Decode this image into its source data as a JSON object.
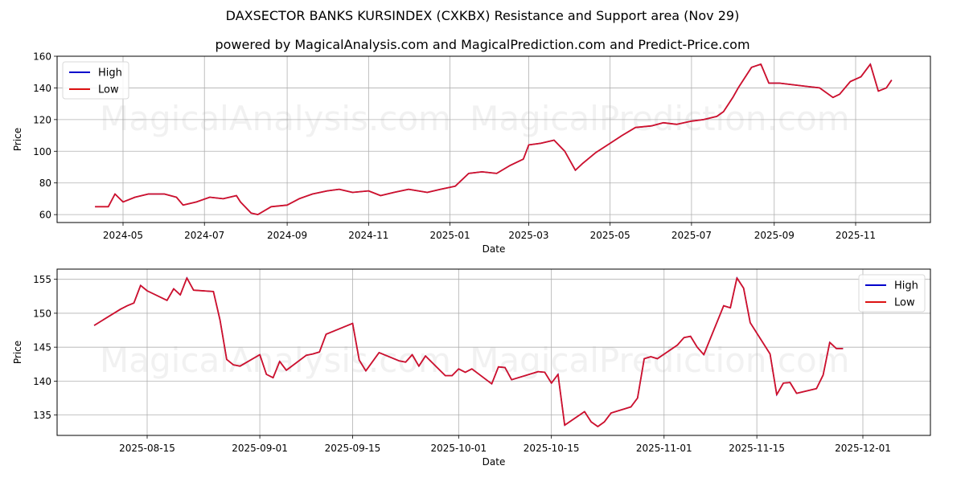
{
  "header": {
    "title": "DAXSECTOR BANKS KURSINDEX (CXKBX) Resistance and Support area (Nov 29)",
    "subtitle": "powered by MagicalAnalysis.com and MagicalPrediction.com and Predict-Price.com"
  },
  "watermarks": [
    "MagicalAnalysis.com",
    "MagicalPrediction.com"
  ],
  "colors": {
    "high": "#0000cc",
    "low": "#dd1111",
    "line": "#d0112b",
    "grid": "#b0b0b0"
  },
  "chart_data": [
    {
      "type": "line",
      "title": "Full history",
      "xlabel": "Date",
      "ylabel": "Price",
      "ylim": [
        55,
        160
      ],
      "yticks": [
        60,
        80,
        100,
        120,
        140,
        160
      ],
      "xticks": [
        "2024-05",
        "2024-07",
        "2024-09",
        "2024-11",
        "2025-01",
        "2025-03",
        "2025-05",
        "2025-07",
        "2025-09",
        "2025-11"
      ],
      "legend": {
        "position": "upper left",
        "entries": [
          "High",
          "Low"
        ]
      },
      "grid": true,
      "x": [
        "2024-04-10",
        "2024-04-20",
        "2024-04-25",
        "2024-05-01",
        "2024-05-10",
        "2024-05-20",
        "2024-06-01",
        "2024-06-10",
        "2024-06-15",
        "2024-06-25",
        "2024-07-05",
        "2024-07-15",
        "2024-07-25",
        "2024-07-28",
        "2024-08-05",
        "2024-08-10",
        "2024-08-20",
        "2024-09-01",
        "2024-09-10",
        "2024-09-20",
        "2024-10-01",
        "2024-10-10",
        "2024-10-20",
        "2024-11-01",
        "2024-11-10",
        "2024-11-20",
        "2024-12-01",
        "2024-12-15",
        "2024-12-25",
        "2025-01-05",
        "2025-01-15",
        "2025-01-25",
        "2025-02-05",
        "2025-02-15",
        "2025-02-25",
        "2025-03-01",
        "2025-03-10",
        "2025-03-20",
        "2025-03-28",
        "2025-04-05",
        "2025-04-10",
        "2025-04-20",
        "2025-05-01",
        "2025-05-10",
        "2025-05-20",
        "2025-06-01",
        "2025-06-10",
        "2025-06-20",
        "2025-07-01",
        "2025-07-10",
        "2025-07-20",
        "2025-07-25",
        "2025-08-01",
        "2025-08-05",
        "2025-08-15",
        "2025-08-22",
        "2025-08-28",
        "2025-09-05",
        "2025-09-15",
        "2025-09-25",
        "2025-10-05",
        "2025-10-15",
        "2025-10-20",
        "2025-10-28",
        "2025-11-05",
        "2025-11-12",
        "2025-11-18",
        "2025-11-24",
        "2025-11-28"
      ],
      "series": [
        {
          "name": "High",
          "values": [
            65,
            65,
            73,
            68,
            71,
            73,
            73,
            71,
            66,
            68,
            71,
            70,
            72,
            68,
            61,
            60,
            65,
            66,
            70,
            73,
            75,
            76,
            74,
            75,
            72,
            74,
            76,
            74,
            76,
            78,
            86,
            87,
            86,
            91,
            95,
            104,
            105,
            107,
            100,
            88,
            92,
            99,
            105,
            110,
            115,
            116,
            118,
            117,
            119,
            120,
            122,
            125,
            134,
            140,
            153,
            155,
            143,
            143,
            142,
            141,
            140,
            134,
            136,
            144,
            147,
            155,
            138,
            140,
            145
          ]
        },
        {
          "name": "Low",
          "values": [
            65,
            65,
            73,
            68,
            71,
            73,
            73,
            71,
            66,
            68,
            71,
            70,
            72,
            68,
            61,
            60,
            65,
            66,
            70,
            73,
            75,
            76,
            74,
            75,
            72,
            74,
            76,
            74,
            76,
            78,
            86,
            87,
            86,
            91,
            95,
            104,
            105,
            107,
            100,
            88,
            92,
            99,
            105,
            110,
            115,
            116,
            118,
            117,
            119,
            120,
            122,
            125,
            134,
            140,
            153,
            155,
            143,
            143,
            142,
            141,
            140,
            134,
            136,
            144,
            147,
            155,
            138,
            140,
            145
          ]
        }
      ]
    },
    {
      "type": "line",
      "title": "Recent zoom",
      "xlabel": "Date",
      "ylabel": "Price",
      "ylim": [
        132,
        156.5
      ],
      "yticks": [
        135,
        140,
        145,
        150,
        155
      ],
      "xticks": [
        "2025-08-15",
        "2025-09-01",
        "2025-09-15",
        "2025-10-01",
        "2025-10-15",
        "2025-11-01",
        "2025-11-15",
        "2025-12-01"
      ],
      "legend": {
        "position": "upper right",
        "entries": [
          "High",
          "Low"
        ]
      },
      "grid": true,
      "x": [
        "2025-08-07",
        "2025-08-11",
        "2025-08-12",
        "2025-08-13",
        "2025-08-14",
        "2025-08-15",
        "2025-08-18",
        "2025-08-19",
        "2025-08-20",
        "2025-08-21",
        "2025-08-22",
        "2025-08-25",
        "2025-08-26",
        "2025-08-27",
        "2025-08-28",
        "2025-08-29",
        "2025-09-01",
        "2025-09-02",
        "2025-09-03",
        "2025-09-04",
        "2025-09-05",
        "2025-09-08",
        "2025-09-09",
        "2025-09-10",
        "2025-09-11",
        "2025-09-15",
        "2025-09-16",
        "2025-09-17",
        "2025-09-19",
        "2025-09-22",
        "2025-09-23",
        "2025-09-24",
        "2025-09-25",
        "2025-09-26",
        "2025-09-29",
        "2025-09-30",
        "2025-10-01",
        "2025-10-02",
        "2025-10-03",
        "2025-10-06",
        "2025-10-07",
        "2025-10-08",
        "2025-10-09",
        "2025-10-13",
        "2025-10-14",
        "2025-10-15",
        "2025-10-16",
        "2025-10-17",
        "2025-10-20",
        "2025-10-21",
        "2025-10-22",
        "2025-10-23",
        "2025-10-24",
        "2025-10-27",
        "2025-10-28",
        "2025-10-29",
        "2025-10-30",
        "2025-10-31",
        "2025-11-03",
        "2025-11-04",
        "2025-11-05",
        "2025-11-06",
        "2025-11-07",
        "2025-11-10",
        "2025-11-11",
        "2025-11-12",
        "2025-11-13",
        "2025-11-14",
        "2025-11-17",
        "2025-11-18",
        "2025-11-19",
        "2025-11-20",
        "2025-11-21",
        "2025-11-24",
        "2025-11-25",
        "2025-11-26",
        "2025-11-27",
        "2025-11-28"
      ],
      "series": [
        {
          "name": "High",
          "values": [
            148.2,
            150.6,
            151.1,
            151.5,
            154.1,
            153.3,
            151.9,
            153.6,
            152.7,
            155.2,
            153.4,
            153.2,
            149.0,
            143.2,
            142.4,
            142.2,
            143.9,
            141.0,
            140.5,
            142.9,
            141.6,
            143.8,
            144.0,
            144.3,
            146.9,
            148.5,
            143.1,
            141.5,
            144.2,
            143.0,
            142.8,
            143.9,
            142.2,
            143.7,
            140.8,
            140.8,
            141.8,
            141.3,
            141.8,
            139.6,
            142.1,
            142.0,
            140.2,
            141.4,
            141.3,
            139.7,
            141.0,
            133.5,
            135.5,
            134.0,
            133.3,
            134.0,
            135.3,
            136.2,
            137.5,
            143.3,
            143.6,
            143.3,
            145.3,
            146.4,
            146.6,
            145.0,
            143.9,
            151.1,
            150.8,
            155.2,
            153.7,
            148.6,
            144.0,
            138.0,
            139.7,
            139.8,
            138.2,
            138.9,
            140.9,
            145.7,
            144.8,
            144.8
          ]
        },
        {
          "name": "Low",
          "values": [
            148.2,
            150.6,
            151.1,
            151.5,
            154.1,
            153.3,
            151.9,
            153.6,
            152.7,
            155.2,
            153.4,
            153.2,
            149.0,
            143.2,
            142.4,
            142.2,
            143.9,
            141.0,
            140.5,
            142.9,
            141.6,
            143.8,
            144.0,
            144.3,
            146.9,
            148.5,
            143.1,
            141.5,
            144.2,
            143.0,
            142.8,
            143.9,
            142.2,
            143.7,
            140.8,
            140.8,
            141.8,
            141.3,
            141.8,
            139.6,
            142.1,
            142.0,
            140.2,
            141.4,
            141.3,
            139.7,
            141.0,
            133.5,
            135.5,
            134.0,
            133.3,
            134.0,
            135.3,
            136.2,
            137.5,
            143.3,
            143.6,
            143.3,
            145.3,
            146.4,
            146.6,
            145.0,
            143.9,
            151.1,
            150.8,
            155.2,
            153.7,
            148.6,
            144.0,
            138.0,
            139.7,
            139.8,
            138.2,
            138.9,
            140.9,
            145.7,
            144.8,
            144.8
          ]
        }
      ]
    }
  ]
}
